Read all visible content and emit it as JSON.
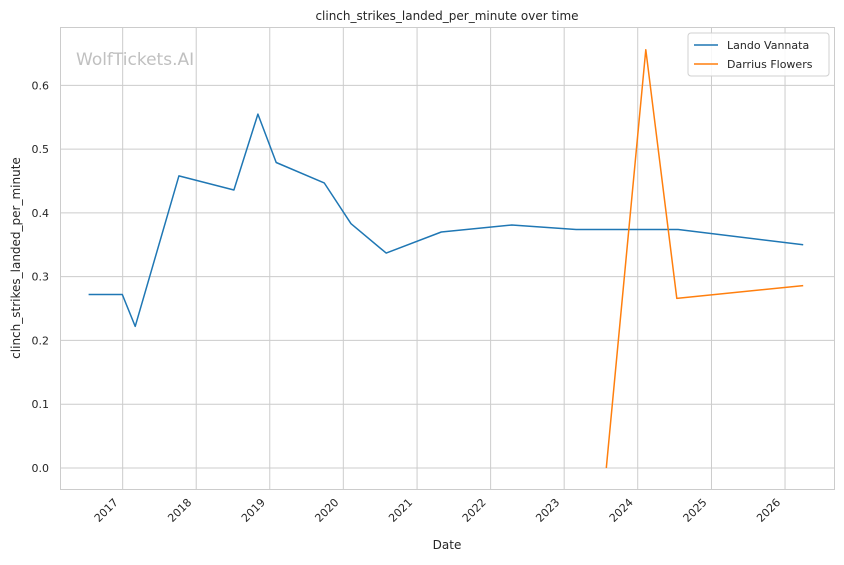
{
  "chart_data": {
    "type": "line",
    "title": "clinch_strikes_landed_per_minute over time",
    "xlabel": "Date",
    "ylabel": "clinch_strikes_landed_per_minute",
    "watermark": "WolfTickets.AI",
    "x_domain": [
      "2016-03-01",
      "2026-09-01"
    ],
    "ylim": [
      -0.033,
      0.69
    ],
    "x_ticks": [
      "2017",
      "2018",
      "2019",
      "2020",
      "2021",
      "2022",
      "2023",
      "2024",
      "2025",
      "2026"
    ],
    "y_ticks": [
      0.0,
      0.1,
      0.2,
      0.3,
      0.4,
      0.5,
      0.6
    ],
    "grid": true,
    "legend_position": "top-right",
    "series": [
      {
        "name": "Lando Vannata",
        "color": "#1f77b4",
        "points": [
          {
            "x": "2016-07-16",
            "y": 0.272
          },
          {
            "x": "2016-12-30",
            "y": 0.272
          },
          {
            "x": "2017-03-04",
            "y": 0.222
          },
          {
            "x": "2017-10-07",
            "y": 0.458
          },
          {
            "x": "2018-07-07",
            "y": 0.436
          },
          {
            "x": "2018-11-03",
            "y": 0.555
          },
          {
            "x": "2019-02-02",
            "y": 0.479
          },
          {
            "x": "2019-09-28",
            "y": 0.447
          },
          {
            "x": "2020-02-08",
            "y": 0.383
          },
          {
            "x": "2020-08-01",
            "y": 0.337
          },
          {
            "x": "2021-05-01",
            "y": 0.37
          },
          {
            "x": "2022-04-16",
            "y": 0.381
          },
          {
            "x": "2023-03-01",
            "y": 0.374
          },
          {
            "x": "2024-07-20",
            "y": 0.374
          },
          {
            "x": "2026-04-01",
            "y": 0.35
          }
        ]
      },
      {
        "name": "Darrius Flowers",
        "color": "#ff7f0e",
        "points": [
          {
            "x": "2023-07-29",
            "y": 0.0
          },
          {
            "x": "2024-02-10",
            "y": 0.656
          },
          {
            "x": "2024-07-13",
            "y": 0.266
          },
          {
            "x": "2026-04-01",
            "y": 0.286
          }
        ]
      }
    ]
  }
}
